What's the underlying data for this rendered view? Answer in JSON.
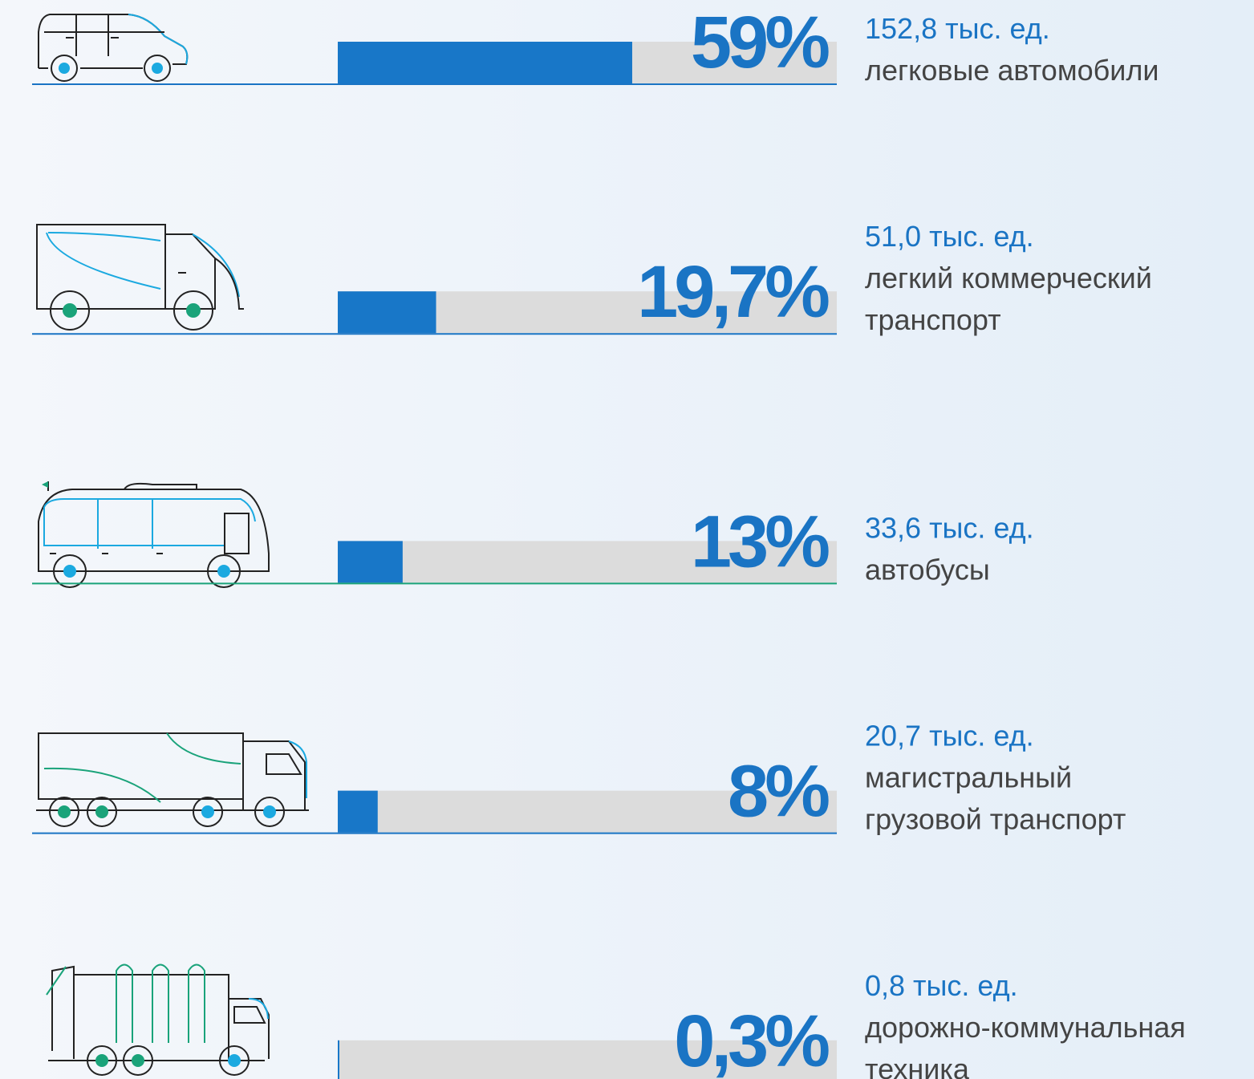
{
  "chart_data": {
    "type": "bar",
    "orientation": "horizontal",
    "categories": [
      [
        "легковые автомобили"
      ],
      [
        "легкий коммерческий",
        "транспорт"
      ],
      [
        "автобусы"
      ],
      [
        "магистральный",
        "грузовой транспорт"
      ],
      [
        "дорожно-коммунальная",
        "техника"
      ]
    ],
    "values": [
      59,
      19.7,
      13,
      8,
      0.3
    ],
    "value_labels": [
      "59%",
      "19,7%",
      "13%",
      "8%",
      "0,3%"
    ],
    "count_labels": [
      "152,8 тыс. ед.",
      "51,0 тыс. ед.",
      "33,6 тыс. ед.",
      "20,7 тыс. ед.",
      "0,8 тыс. ед."
    ],
    "xlim": [
      0,
      100
    ],
    "color": "#1877c8",
    "track_color": "#dcdcdc",
    "baseline_colors": [
      "#1a74c4",
      "#1a74c4",
      "#1aa37a",
      "#1a74c4",
      "#1a74c4"
    ]
  }
}
